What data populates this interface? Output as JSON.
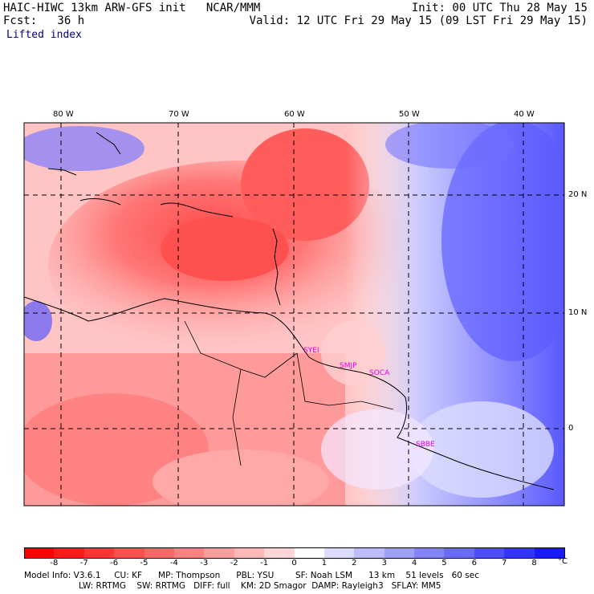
{
  "header": {
    "model": "HAIC-HIWC 13km ARW-GFS init   NCAR/MMM",
    "init": "Init: 00 UTC Thu 28 May 15",
    "fcst": "Fcst:   36 h",
    "valid": "Valid: 12 UTC Fri 29 May 15 (09 LST Fri 29 May 15)",
    "field": "Lifted index"
  },
  "map": {
    "lon_labels": [
      "80 W",
      "70 W",
      "60 W",
      "50 W",
      "40 W"
    ],
    "lat_labels": [
      "20 N",
      "10 N",
      "0"
    ],
    "stations": [
      "SYEI",
      "SMJP",
      "SOCA",
      "SBBE"
    ]
  },
  "colorbar": {
    "ticks": [
      "-8",
      "-7",
      "-6",
      "-5",
      "-4",
      "-3",
      "-2",
      "-1",
      "0",
      "1",
      "2",
      "3",
      "4",
      "5",
      "6",
      "7",
      "8"
    ],
    "unit": "°C",
    "colors": [
      "#ff1a1a",
      "#ff3535",
      "#ff4f4f",
      "#ff6666",
      "#ff8080",
      "#ff9c9c",
      "#ffb8b8",
      "#ffd6d6",
      "#ffffff",
      "#dcdcff",
      "#bcbcff",
      "#a0a0ff",
      "#8484ff",
      "#6a6aff",
      "#4e4eff",
      "#3434ff",
      "#1a1aff"
    ]
  },
  "model_info": {
    "line1": "Model Info: V3.6.1     CU: KF      MP: Thompson      PBL: YSU        SF: Noah LSM      13 km    51 levels   60 sec",
    "line2": "LW: RRTMG    SW: RRTMG   DIFF: full    KM: 2D Smagor  DAMP: Rayleigh3   SFLAY: MM5"
  }
}
